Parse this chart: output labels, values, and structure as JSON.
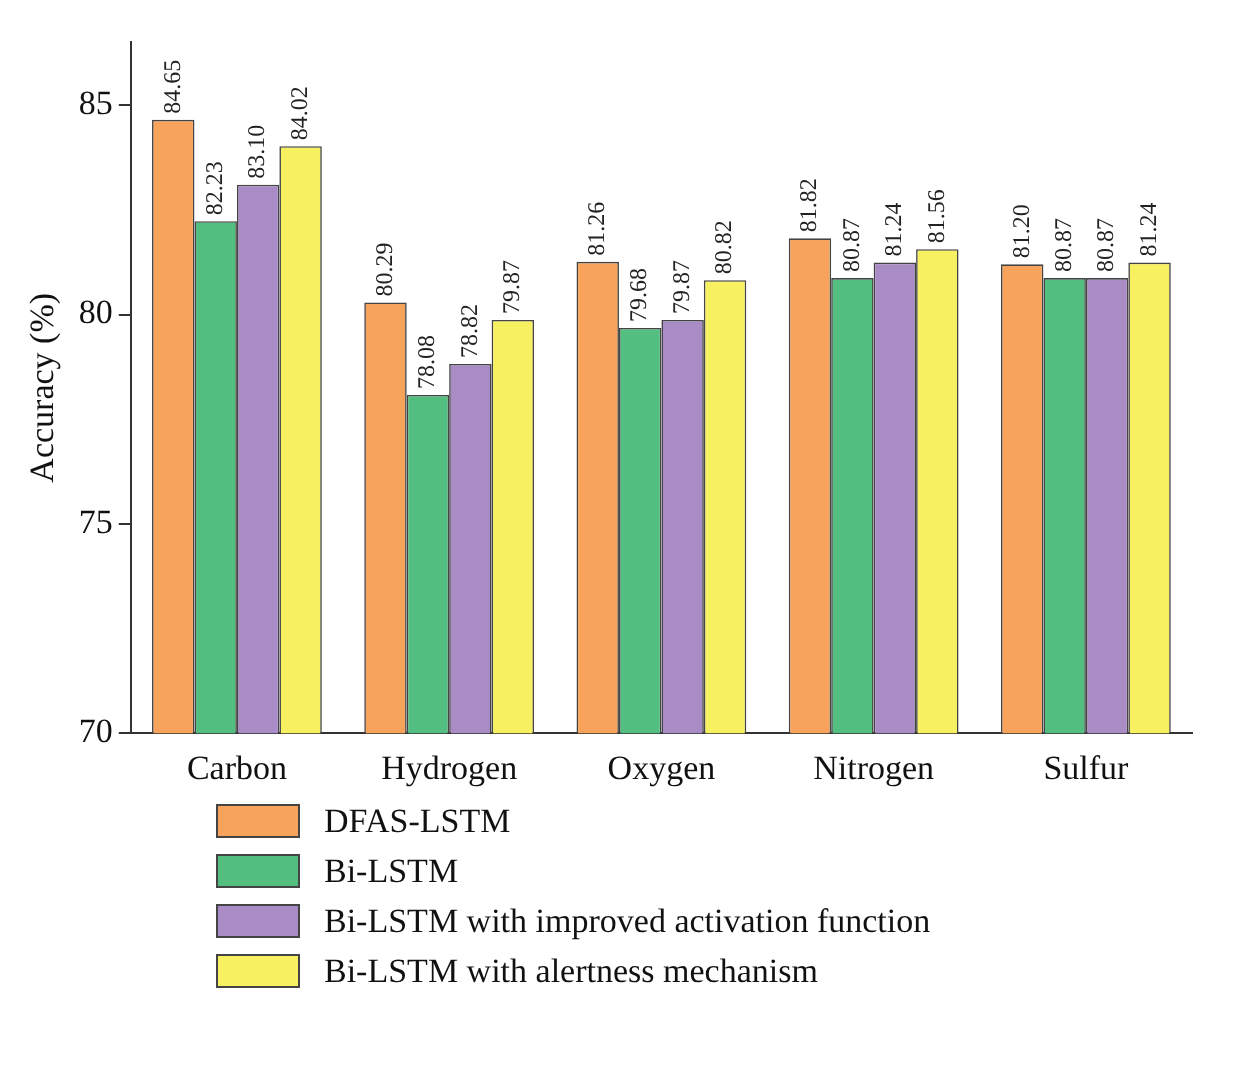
{
  "chart_data": {
    "type": "bar",
    "ylabel": "Accuracy (%)",
    "categories": [
      "Carbon",
      "Hydrogen",
      "Oxygen",
      "Nitrogen",
      "Sulfur"
    ],
    "series": [
      {
        "name": "DFAS-LSTM",
        "color": "#f7a35c",
        "values": [
          84.65,
          80.29,
          81.26,
          81.82,
          81.2
        ]
      },
      {
        "name": "Bi-LSTM",
        "color": "#52be80",
        "values": [
          82.23,
          78.08,
          79.68,
          80.87,
          80.87
        ]
      },
      {
        "name": "Bi-LSTM with improved activation function",
        "color": "#a98bc6",
        "values": [
          83.1,
          78.82,
          79.87,
          81.24,
          80.87
        ]
      },
      {
        "name": "Bi-LSTM with alertness mechanism",
        "color": "#f7f060",
        "values": [
          84.02,
          79.87,
          80.82,
          81.56,
          81.24
        ]
      }
    ],
    "value_labels": [
      [
        "84.65",
        "80.29",
        "81.26",
        "81.82",
        "81.20"
      ],
      [
        "82.23",
        "78.08",
        "79.68",
        "80.87",
        "80.87"
      ],
      [
        "83.10",
        "78.82",
        "79.87",
        "81.24",
        "80.87"
      ],
      [
        "84.02",
        "79.87",
        "80.82",
        "81.56",
        "81.24"
      ]
    ],
    "ylim": [
      70,
      86.5
    ],
    "yticks": [
      70,
      75,
      80,
      85
    ],
    "grid": false,
    "legend": "bottom left"
  }
}
